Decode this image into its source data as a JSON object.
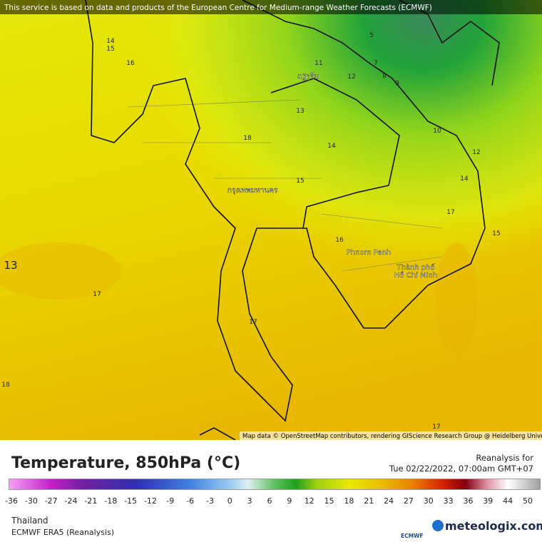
{
  "header": {
    "notice": "This service is based on data and products of the European Centre for Medium-range Weather Forecasts (ECMWF)"
  },
  "map": {
    "contour_labels": [
      14,
      15,
      16,
      11,
      12,
      7,
      8,
      9,
      5,
      13,
      18,
      14,
      10,
      12,
      14,
      15,
      17,
      15,
      16,
      13,
      17,
      17,
      18,
      17
    ],
    "cities": [
      "ວຽງຈັນ",
      "กรุงเทพมหานคร",
      "Phnom Penh",
      "Thành phố",
      "Hồ Chí Minh"
    ],
    "attribution": "Map data © OpenStreetMap contributors, rendering GIScience Research Group @ Heidelberg University"
  },
  "footer": {
    "title": "Temperature, 850hPa (°C)",
    "run_label": "Reanalysis for",
    "run_time": "Tue 02/22/2022, 07:00am GMT+07",
    "colorbar_ticks": [
      -36,
      -30,
      -27,
      -24,
      -21,
      -18,
      -15,
      -12,
      -9,
      -6,
      -3,
      0,
      3,
      6,
      9,
      12,
      15,
      18,
      21,
      24,
      27,
      30,
      33,
      36,
      39,
      44,
      50
    ],
    "region": "Thailand",
    "model": "ECMWF ERA5 (Reanalysis)",
    "provider": "ECMWF",
    "brand": "meteologix.com"
  }
}
